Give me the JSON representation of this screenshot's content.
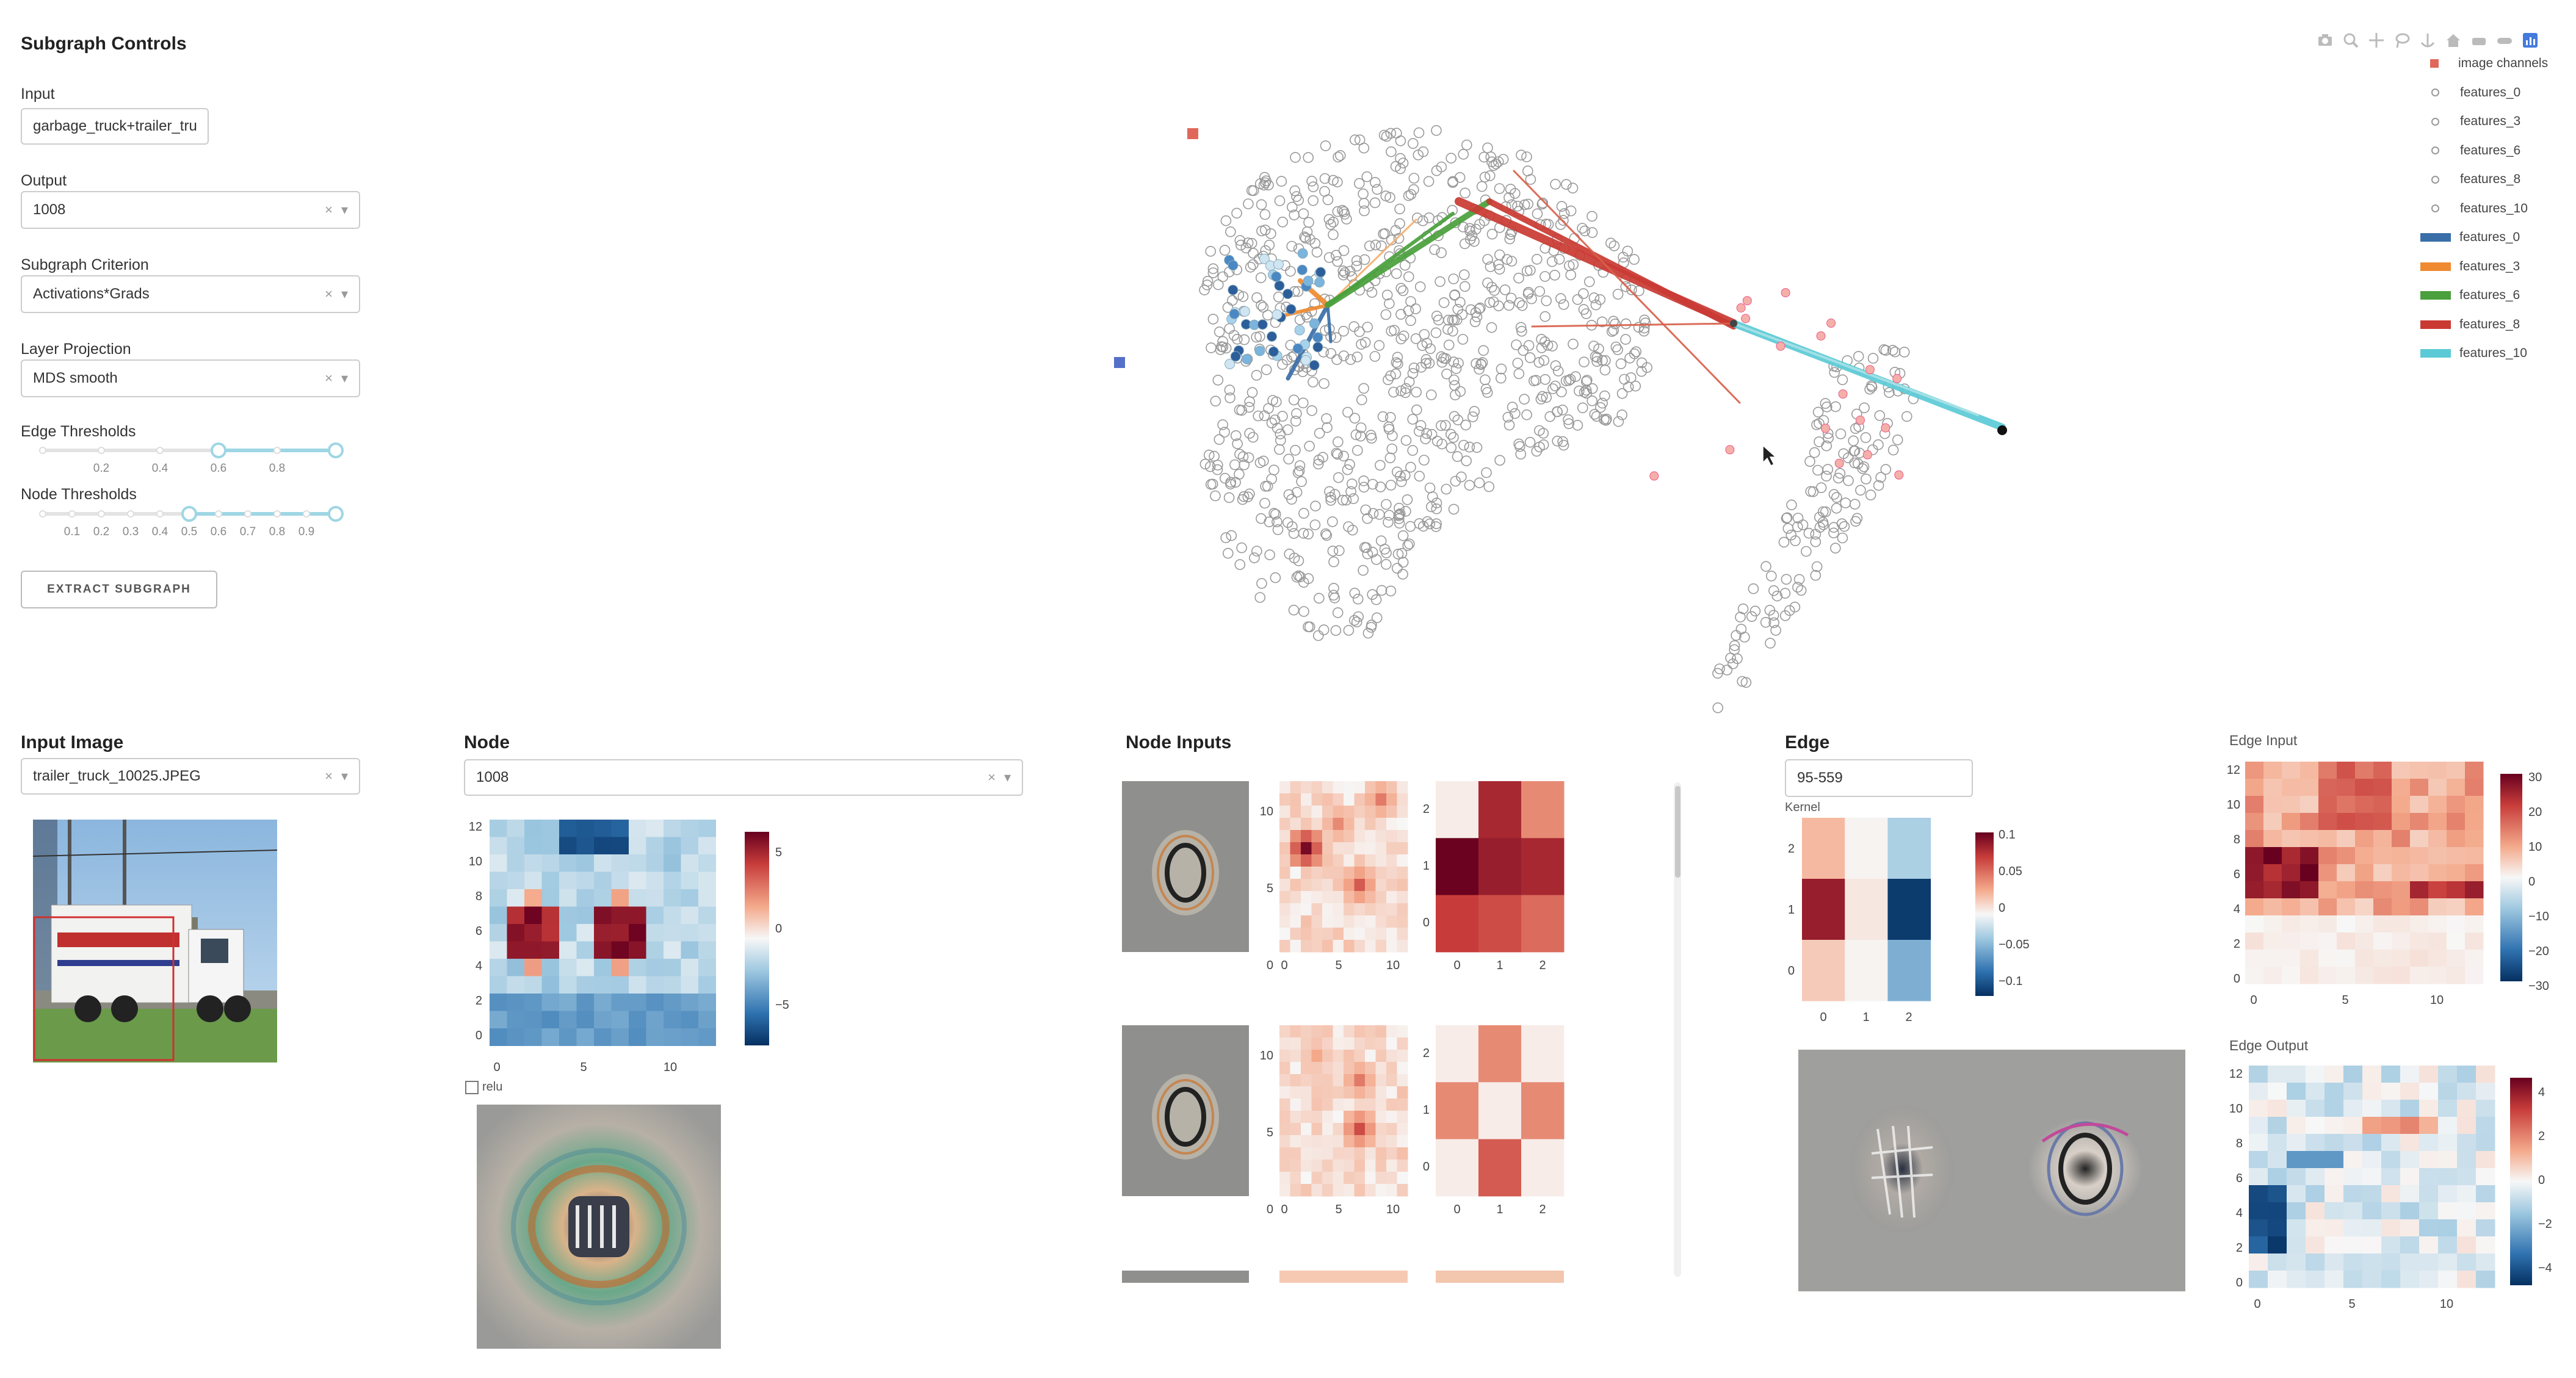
{
  "controls": {
    "title": "Subgraph Controls",
    "input_label": "Input",
    "input_value": "garbage_truck+trailer_tru",
    "output_label": "Output",
    "output_value": "1008",
    "criterion_label": "Subgraph Criterion",
    "criterion_value": "Activations*Grads",
    "projection_label": "Layer Projection",
    "projection_value": "MDS smooth",
    "edge_thresholds_label": "Edge Thresholds",
    "edge_ticks": [
      "0.2",
      "0.4",
      "0.6",
      "0.8"
    ],
    "edge_range": [
      0.6,
      1.0
    ],
    "node_thresholds_label": "Node Thresholds",
    "node_ticks": [
      "0.1",
      "0.2",
      "0.3",
      "0.4",
      "0.5",
      "0.6",
      "0.7",
      "0.8",
      "0.9"
    ],
    "node_range": [
      0.5,
      1.0
    ],
    "extract_button": "EXTRACT SUBGRAPH"
  },
  "graph": {
    "legend": [
      {
        "label": "image channels",
        "kind": "square",
        "color": "#e0685a"
      },
      {
        "label": "features_0",
        "kind": "circle",
        "color": "#999999"
      },
      {
        "label": "features_3",
        "kind": "circle",
        "color": "#999999"
      },
      {
        "label": "features_6",
        "kind": "circle",
        "color": "#999999"
      },
      {
        "label": "features_8",
        "kind": "circle",
        "color": "#999999"
      },
      {
        "label": "features_10",
        "kind": "circle",
        "color": "#999999"
      },
      {
        "label": "features_0",
        "kind": "line",
        "color": "#3a6ea8"
      },
      {
        "label": "features_3",
        "kind": "line",
        "color": "#ef8a30"
      },
      {
        "label": "features_6",
        "kind": "line",
        "color": "#4aa03c"
      },
      {
        "label": "features_8",
        "kind": "line",
        "color": "#c93a33"
      },
      {
        "label": "features_10",
        "kind": "line",
        "color": "#5ccad6"
      }
    ],
    "toolbar_icons": [
      "camera-icon",
      "zoom-icon",
      "pan-icon",
      "lasso-icon",
      "anchor-icon",
      "home-icon",
      "spike-icon",
      "toggle-icon",
      "plotly-logo-icon"
    ]
  },
  "input_image": {
    "title": "Input Image",
    "value": "trailer_truck_10025.JPEG"
  },
  "node": {
    "title": "Node",
    "value": "1008",
    "relu_label": "relu",
    "xticks": [
      "0",
      "5",
      "10"
    ],
    "yticks": [
      "12",
      "10",
      "8",
      "6",
      "4",
      "2",
      "0"
    ],
    "cbar_ticks": [
      "5",
      "0",
      "−5"
    ]
  },
  "node_inputs": {
    "title": "Node Inputs",
    "xticks_a": [
      "0",
      "5",
      "10"
    ],
    "yticks_a": [
      "10",
      "5",
      "0"
    ],
    "xticks_b": [
      "0",
      "1",
      "2"
    ],
    "yticks_b": [
      "2",
      "1",
      "0"
    ]
  },
  "edge": {
    "title": "Edge",
    "value": "95-559",
    "kernel_label": "Kernel",
    "xticks": [
      "0",
      "1",
      "2"
    ],
    "yticks": [
      "2",
      "1",
      "0"
    ],
    "cbar_ticks": [
      "0.1",
      "0.05",
      "0",
      "−0.05",
      "−0.1"
    ],
    "input_title": "Edge Input",
    "input_xticks": [
      "0",
      "5",
      "10"
    ],
    "input_yticks": [
      "12",
      "10",
      "8",
      "6",
      "4",
      "2",
      "0"
    ],
    "input_cbar": [
      "30",
      "20",
      "10",
      "0",
      "−10",
      "−20",
      "−30"
    ],
    "output_title": "Edge Output",
    "output_xticks": [
      "0",
      "5",
      "10"
    ],
    "output_yticks": [
      "12",
      "10",
      "8",
      "6",
      "4",
      "2",
      "0"
    ],
    "output_cbar": [
      "4",
      "2",
      "0",
      "−2",
      "−4"
    ]
  }
}
